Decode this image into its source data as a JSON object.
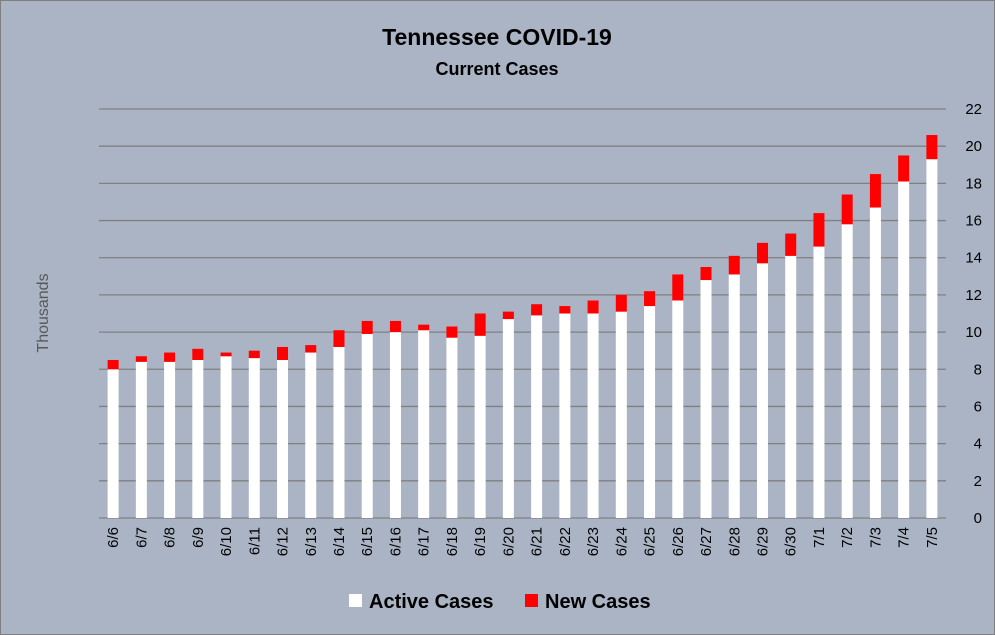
{
  "chart_data": {
    "type": "bar",
    "stacked": true,
    "title": "Tennessee COVID-19",
    "subtitle": "Current Cases",
    "ylabel": "Thousands",
    "xlabel": "",
    "ylim": [
      0,
      22
    ],
    "yticks": [
      0,
      2,
      4,
      6,
      8,
      10,
      12,
      14,
      16,
      18,
      20,
      22
    ],
    "y_axis_position": "right",
    "grid": true,
    "legend_position": "bottom",
    "categories": [
      "6/6",
      "6/7",
      "6/8",
      "6/9",
      "6/10",
      "6/11",
      "6/12",
      "6/13",
      "6/14",
      "6/15",
      "6/16",
      "6/17",
      "6/18",
      "6/19",
      "6/20",
      "6/21",
      "6/22",
      "6/23",
      "6/24",
      "6/25",
      "6/26",
      "6/27",
      "6/28",
      "6/29",
      "6/30",
      "7/1",
      "7/2",
      "7/3",
      "7/4",
      "7/5"
    ],
    "series": [
      {
        "name": "Active Cases",
        "color": "#ffffff",
        "values": [
          8.0,
          8.4,
          8.4,
          8.5,
          8.7,
          8.6,
          8.5,
          8.9,
          9.2,
          9.9,
          10.0,
          10.1,
          9.7,
          9.8,
          10.7,
          10.9,
          11.0,
          11.0,
          11.1,
          11.4,
          11.7,
          12.8,
          13.1,
          13.7,
          14.1,
          14.6,
          15.8,
          16.7,
          18.1,
          19.3
        ]
      },
      {
        "name": "New Cases",
        "color": "#ff0000",
        "values": [
          0.5,
          0.3,
          0.5,
          0.6,
          0.2,
          0.4,
          0.7,
          0.4,
          0.9,
          0.7,
          0.6,
          0.3,
          0.6,
          1.2,
          0.4,
          0.6,
          0.4,
          0.7,
          0.9,
          0.8,
          1.4,
          0.7,
          1.0,
          1.1,
          1.2,
          1.8,
          1.6,
          1.8,
          1.4,
          1.3
        ]
      }
    ]
  }
}
